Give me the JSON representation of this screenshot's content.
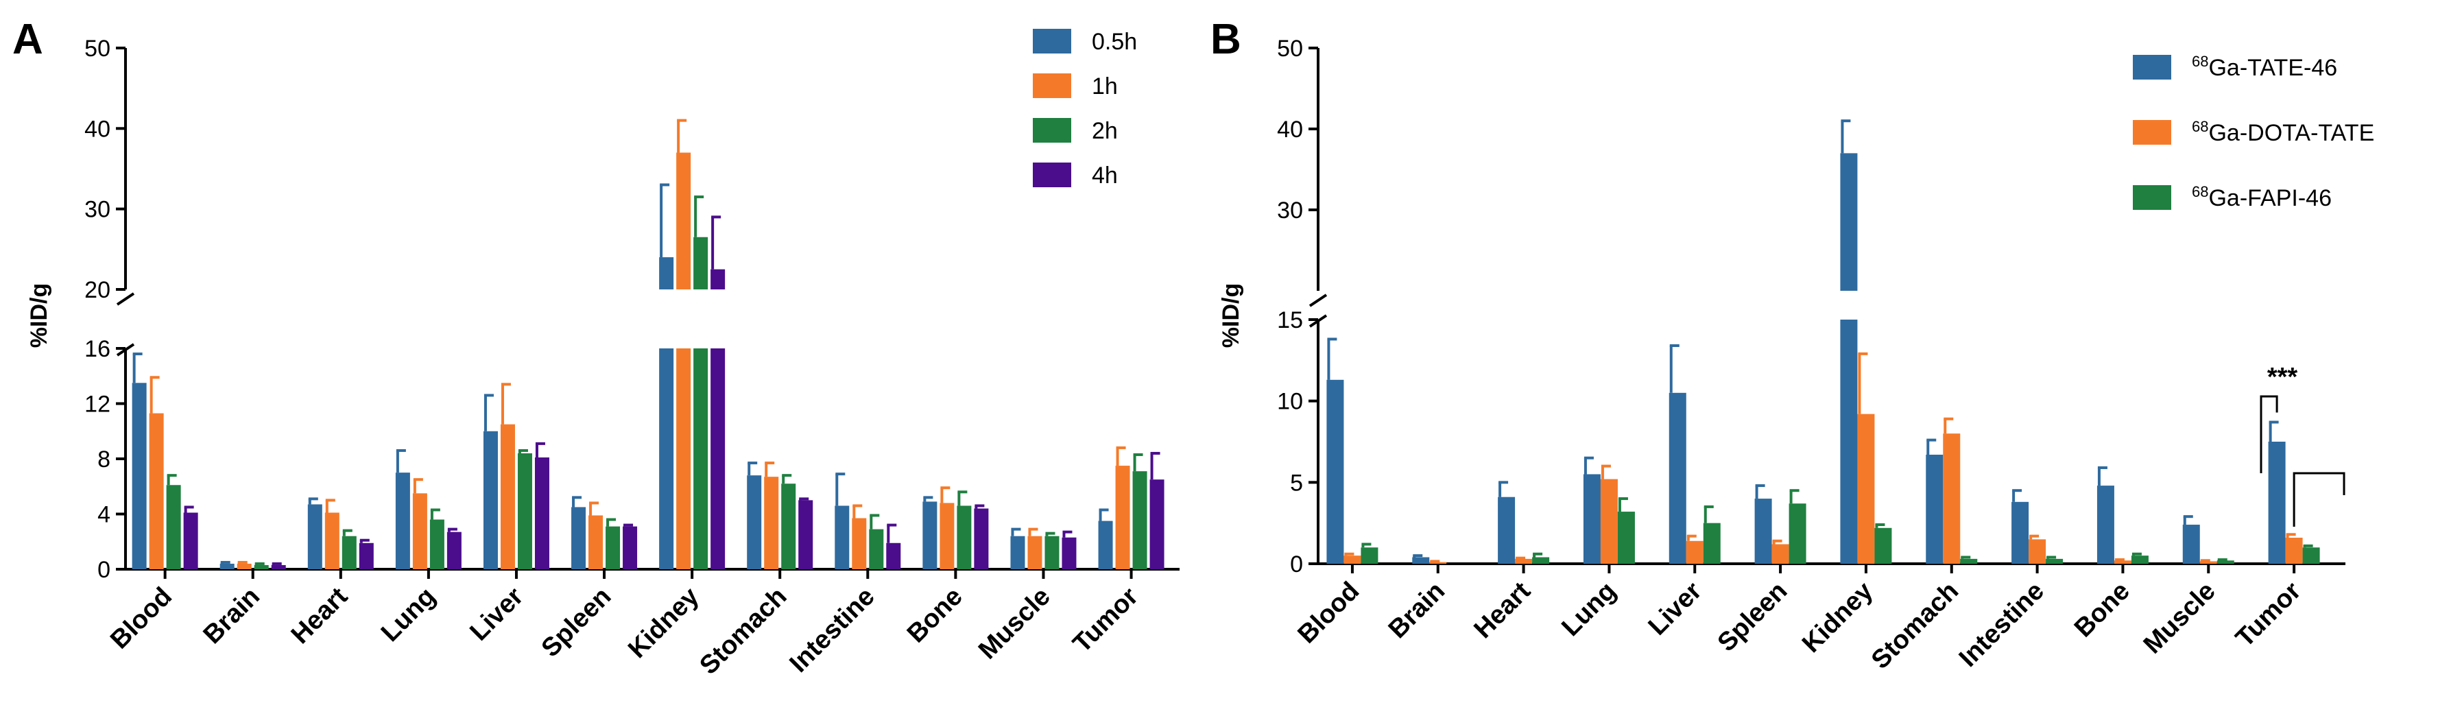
{
  "chart_data": [
    {
      "type": "bar",
      "panel": "A",
      "ylabel": "%ID/g",
      "y_axis": {
        "broken": true,
        "lower_range": [
          0,
          16
        ],
        "upper_range": [
          20,
          50
        ],
        "lower_ticks": [
          "0",
          "4",
          "8",
          "12",
          "16"
        ],
        "upper_ticks": [
          "20",
          "30",
          "40",
          "50"
        ]
      },
      "legend_position": "top-right",
      "categories": [
        "Blood",
        "Brain",
        "Heart",
        "Lung",
        "Liver",
        "Spleen",
        "Kidney",
        "Stomach",
        "Intestine",
        "Bone",
        "Muscle",
        "Tumor"
      ],
      "series": [
        {
          "name": "0.5h",
          "color": "#2E6A9E",
          "values": [
            13.5,
            0.4,
            4.7,
            7.0,
            10.0,
            4.5,
            24.0,
            6.8,
            4.6,
            4.9,
            2.4,
            3.5
          ],
          "errors": [
            2.1,
            0.1,
            0.4,
            1.6,
            2.6,
            0.7,
            9.0,
            0.9,
            2.3,
            0.3,
            0.5,
            0.8
          ]
        },
        {
          "name": "1h",
          "color": "#F47A2A",
          "values": [
            11.3,
            0.4,
            4.1,
            5.5,
            10.5,
            3.9,
            37.0,
            6.7,
            3.7,
            4.8,
            2.4,
            7.5
          ],
          "errors": [
            2.6,
            0.1,
            0.9,
            1.0,
            2.9,
            0.9,
            4.0,
            1.0,
            0.9,
            1.1,
            0.5,
            1.3
          ]
        },
        {
          "name": "2h",
          "color": "#1F8040",
          "values": [
            6.1,
            0.3,
            2.4,
            3.6,
            8.4,
            3.1,
            26.5,
            6.2,
            2.9,
            4.6,
            2.4,
            7.1
          ],
          "errors": [
            0.7,
            0.1,
            0.4,
            0.7,
            0.2,
            0.5,
            5.0,
            0.6,
            1.0,
            1.0,
            0.2,
            1.2
          ]
        },
        {
          "name": "4h",
          "color": "#4B0D8C",
          "values": [
            4.1,
            0.3,
            1.9,
            2.7,
            8.1,
            3.1,
            22.5,
            5.0,
            1.9,
            4.4,
            2.3,
            6.5
          ],
          "errors": [
            0.4,
            0.1,
            0.2,
            0.2,
            1.0,
            0.1,
            6.5,
            0.1,
            1.3,
            0.2,
            0.4,
            1.9
          ]
        }
      ]
    },
    {
      "type": "bar",
      "panel": "B",
      "ylabel": "%ID/g",
      "y_axis": {
        "broken": true,
        "lower_range": [
          0,
          15
        ],
        "upper_range": [
          20,
          50
        ],
        "lower_ticks": [
          "0",
          "5",
          "10",
          "15"
        ],
        "upper_ticks": [
          "30",
          "40",
          "50"
        ]
      },
      "legend_position": "top-right",
      "categories": [
        "Blood",
        "Brain",
        "Heart",
        "Lung",
        "Liver",
        "Spleen",
        "Kidney",
        "Stomach",
        "Intestine",
        "Bone",
        "Muscle",
        "Tumor"
      ],
      "series": [
        {
          "name": "68Ga-TATE-46",
          "sup": "68",
          "base": "Ga-TATE-46",
          "color": "#2E6A9E",
          "values": [
            11.3,
            0.4,
            4.1,
            5.5,
            10.5,
            4.0,
            37.0,
            6.7,
            3.8,
            4.8,
            2.4,
            7.5
          ],
          "errors": [
            2.5,
            0.1,
            0.9,
            1.0,
            2.9,
            0.8,
            4.0,
            0.9,
            0.7,
            1.1,
            0.5,
            1.2
          ]
        },
        {
          "name": "68Ga-DOTA-TATE",
          "sup": "68",
          "base": "Ga-DOTA-TATE",
          "color": "#F47A2A",
          "values": [
            0.5,
            0.1,
            0.3,
            5.2,
            1.4,
            1.2,
            9.2,
            8.0,
            1.5,
            0.2,
            0.15,
            1.6
          ],
          "errors": [
            0.1,
            0.05,
            0.05,
            0.8,
            0.3,
            0.2,
            3.7,
            0.9,
            0.2,
            0.05,
            0.05,
            0.2
          ]
        },
        {
          "name": "68Ga-FAPI-46",
          "sup": "68",
          "base": "Ga-FAPI-46",
          "color": "#1F8040",
          "values": [
            1.0,
            0.0,
            0.4,
            3.2,
            2.5,
            3.7,
            2.2,
            0.3,
            0.3,
            0.5,
            0.2,
            1.0
          ],
          "errors": [
            0.2,
            0.0,
            0.2,
            0.8,
            1.0,
            0.8,
            0.2,
            0.1,
            0.1,
            0.1,
            0.05,
            0.1
          ]
        }
      ],
      "annotation": {
        "label": "***",
        "category": "Tumor"
      }
    }
  ]
}
